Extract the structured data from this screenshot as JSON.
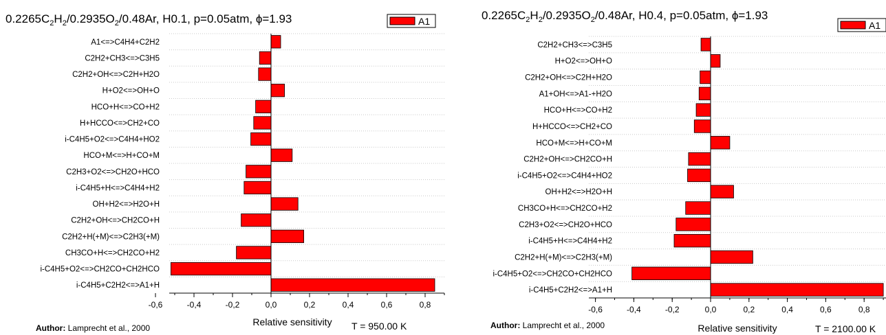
{
  "chart_data": [
    {
      "type": "bar",
      "orientation": "horizontal",
      "title": "0.2265C2H2/0.2935O2/0.48Ar, H0.1, p=0.05atm, ϕ=1.93",
      "legend": {
        "label": "A1",
        "placement": "top-right",
        "color": "#ff0000"
      },
      "xlabel": "Relative sensitivity",
      "xlim": [
        -0.7,
        0.9
      ],
      "xticks": [
        "-0,6",
        "-0,4",
        "-0,2",
        "0,0",
        "0,2",
        "0,4",
        "0,6",
        "0,8"
      ],
      "grid": true,
      "author_label": "Author:",
      "author_text": "Lamprecht et al., 2000",
      "temperature": "T = 950.00 K",
      "categories": [
        "A1<=>C4H4+C2H2",
        "C2H2+CH3<=>C3H5",
        "C2H2+OH<=>C2H+H2O",
        "H+O2<=>OH+O",
        "HCO+H<=>CO+H2",
        "H+HCCO<=>CH2+CO",
        "i-C4H5+O2<=>C4H4+HO2",
        "HCO+M<=>H+CO+M",
        "C2H3+O2<=>CH2O+HCO",
        "i-C4H5+H<=>C4H4+H2",
        "OH+H2<=>H2O+H",
        "C2H2+OH<=>CH2CO+H",
        "C2H2+H(+M)<=>C2H3(+M)",
        "CH3CO+H<=>CH2CO+H2",
        "i-C4H5+O2<=>CH2CO+CH2HCO",
        "i-C4H5+C2H2<=>A1+H"
      ],
      "values": [
        0.05,
        -0.06,
        -0.065,
        0.07,
        -0.08,
        -0.09,
        -0.105,
        0.11,
        -0.13,
        -0.14,
        0.14,
        -0.155,
        0.17,
        -0.18,
        -0.52,
        0.85
      ]
    },
    {
      "type": "bar",
      "orientation": "horizontal",
      "title": "0.2265C2H2/0.2935O2/0.48Ar, H0.4, p=0.05atm, ϕ=1.93",
      "legend": {
        "label": "A1",
        "placement": "top-right",
        "color": "#ff0000"
      },
      "xlabel": "Relative sensitivity",
      "xlim": [
        -0.6,
        0.9
      ],
      "xticks": [
        "-0,6",
        "-0,4",
        "-0,2",
        "0,0",
        "0,2",
        "0,4",
        "0,6",
        "0,8"
      ],
      "grid": true,
      "author_label": "Author:",
      "author_text": "Lamprecht et al., 2000",
      "temperature": "T = 2100.00 K",
      "categories": [
        "C2H2+CH3<=>C3H5",
        "H+O2<=>OH+O",
        "C2H2+OH<=>C2H+H2O",
        "A1+OH<=>A1-+H2O",
        "HCO+H<=>CO+H2",
        "H+HCCO<=>CH2+CO",
        "HCO+M<=>H+CO+M",
        "C2H2+OH<=>CH2CO+H",
        "i-C4H5+O2<=>C4H4+HO2",
        "OH+H2<=>H2O+H",
        "CH3CO+H<=>CH2CO+H2",
        "C2H3+O2<=>CH2O+HCO",
        "i-C4H5+H<=>C4H4+H2",
        "C2H2+H(+M)<=>C2H3(+M)",
        "i-C4H5+O2<=>CH2CO+CH2HCO",
        "i-C4H5+C2H2<=>A1+H"
      ],
      "values": [
        -0.05,
        0.05,
        -0.055,
        -0.06,
        -0.075,
        -0.085,
        0.1,
        -0.115,
        -0.12,
        0.12,
        -0.13,
        -0.18,
        -0.19,
        0.22,
        -0.41,
        0.9
      ]
    }
  ]
}
